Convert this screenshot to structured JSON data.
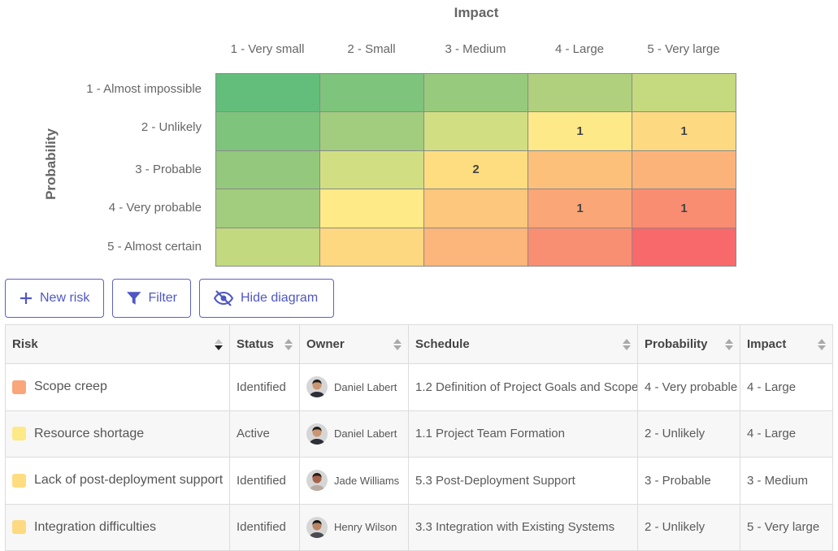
{
  "risk_matrix": {
    "impact_title": "Impact",
    "probability_title": "Probability",
    "impact_levels": [
      "1 - Very small",
      "2 - Small",
      "3 - Medium",
      "4 - Large",
      "5 - Very large"
    ],
    "probability_levels": [
      "1 - Almost impossible",
      "2 - Unlikely",
      "3 - Probable",
      "4 - Very probable",
      "5 - Almost certain"
    ],
    "cell_colors": [
      [
        "#63be7b",
        "#7ec47c",
        "#98ca7e",
        "#b0d07e",
        "#c5d97f"
      ],
      [
        "#7ec47c",
        "#a2cc7e",
        "#d1df82",
        "#fde987",
        "#fdd981"
      ],
      [
        "#93c87d",
        "#d1df82",
        "#fedd81",
        "#fcc07b",
        "#fcb37a"
      ],
      [
        "#a2cc7e",
        "#feea87",
        "#fdc77d",
        "#faa677",
        "#f98d72"
      ],
      [
        "#c2d97f",
        "#fed880",
        "#fcb57a",
        "#f88f72",
        "#f8696b"
      ]
    ],
    "counts": [
      [
        "",
        "",
        "",
        "",
        ""
      ],
      [
        "",
        "",
        "",
        "1",
        "1"
      ],
      [
        "",
        "",
        "2",
        "",
        ""
      ],
      [
        "",
        "",
        "",
        "1",
        "1"
      ],
      [
        "",
        "",
        "",
        "",
        ""
      ]
    ]
  },
  "toolbar": {
    "new_risk_label": "New risk",
    "filter_label": "Filter",
    "hide_diagram_label": "Hide diagram"
  },
  "table": {
    "columns": [
      "Risk",
      "Status",
      "Owner",
      "Schedule",
      "Probability",
      "Impact"
    ],
    "rows": [
      {
        "risk": "Scope creep",
        "color": "#f9a77a",
        "status": "Identified",
        "owner": "Daniel Labert",
        "schedule": "1.2 Definition of Project Goals and Scope",
        "probability": "4 - Very probable",
        "impact": "4 - Large"
      },
      {
        "risk": "Resource shortage",
        "color": "#fde987",
        "status": "Active",
        "owner": "Daniel Labert",
        "schedule": "1.1 Project Team Formation",
        "probability": "2 - Unlikely",
        "impact": "4 - Large"
      },
      {
        "risk": "Lack of post-deployment support",
        "color": "#fedd81",
        "status": "Identified",
        "owner": "Jade Williams",
        "schedule": "5.3 Post-Deployment Support",
        "probability": "3 - Probable",
        "impact": "3 - Medium"
      },
      {
        "risk": "Integration difficulties",
        "color": "#fdd981",
        "status": "Identified",
        "owner": "Henry Wilson",
        "schedule": "3.3 Integration with Existing Systems",
        "probability": "2 - Unlikely",
        "impact": "5 - Very large"
      }
    ]
  }
}
